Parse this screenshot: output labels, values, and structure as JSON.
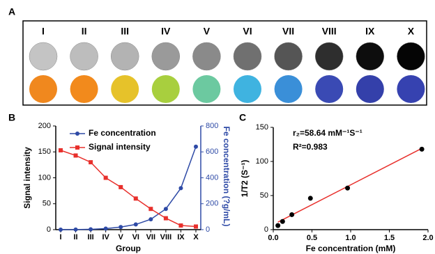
{
  "panel_labels": [
    "A",
    "B",
    "C"
  ],
  "panel_a": {
    "groups": [
      "I",
      "II",
      "III",
      "IV",
      "V",
      "VI",
      "VII",
      "VIII",
      "IX",
      "X"
    ]
  },
  "chart_data": [
    {
      "type": "line",
      "categories": [
        "I",
        "II",
        "III",
        "IV",
        "V",
        "VI",
        "VII",
        "VIII",
        "IX",
        "X"
      ],
      "series": [
        {
          "name": "Fe concentration",
          "color": "#2e4aa6",
          "marker": "circle",
          "axis": "y2",
          "values": [
            0,
            1,
            3,
            8,
            20,
            40,
            80,
            160,
            320,
            640
          ]
        },
        {
          "name": "Signal intensity",
          "color": "#e8302c",
          "marker": "square",
          "values": [
            153,
            143,
            130,
            100,
            82,
            60,
            40,
            22,
            8,
            6
          ]
        }
      ],
      "ylim": [
        0,
        200
      ],
      "yticks": [
        0,
        50,
        100,
        150,
        200
      ],
      "y2lim": [
        0,
        800
      ],
      "y2ticks": [
        0,
        200,
        400,
        600,
        800
      ],
      "x_label": "Group",
      "y_label": "Signal intensity",
      "y2_label": "Fe concentration (?g/mL)"
    },
    {
      "type": "scatter",
      "x": [
        0.06,
        0.12,
        0.24,
        0.48,
        0.96,
        1.92
      ],
      "values": [
        6,
        12,
        22,
        46,
        61,
        118
      ],
      "color": "#000000",
      "fit_color": "#e8302c",
      "xlim": [
        0,
        2
      ],
      "xticks": [
        {
          "value": 0,
          "label": "0.0"
        },
        0.5,
        {
          "value": 1,
          "label": "1.0"
        },
        1.5,
        {
          "value": 2,
          "label": "2.0"
        }
      ],
      "ylim": [
        0,
        150
      ],
      "yticks": [
        0,
        50,
        100,
        150
      ],
      "x_label": "Fe concentration (mM)",
      "y_label": "1/T2 (S⁻¹)",
      "annotations": [
        "r₂=58.64 mM⁻¹S⁻¹",
        "R²=0.983"
      ]
    }
  ]
}
